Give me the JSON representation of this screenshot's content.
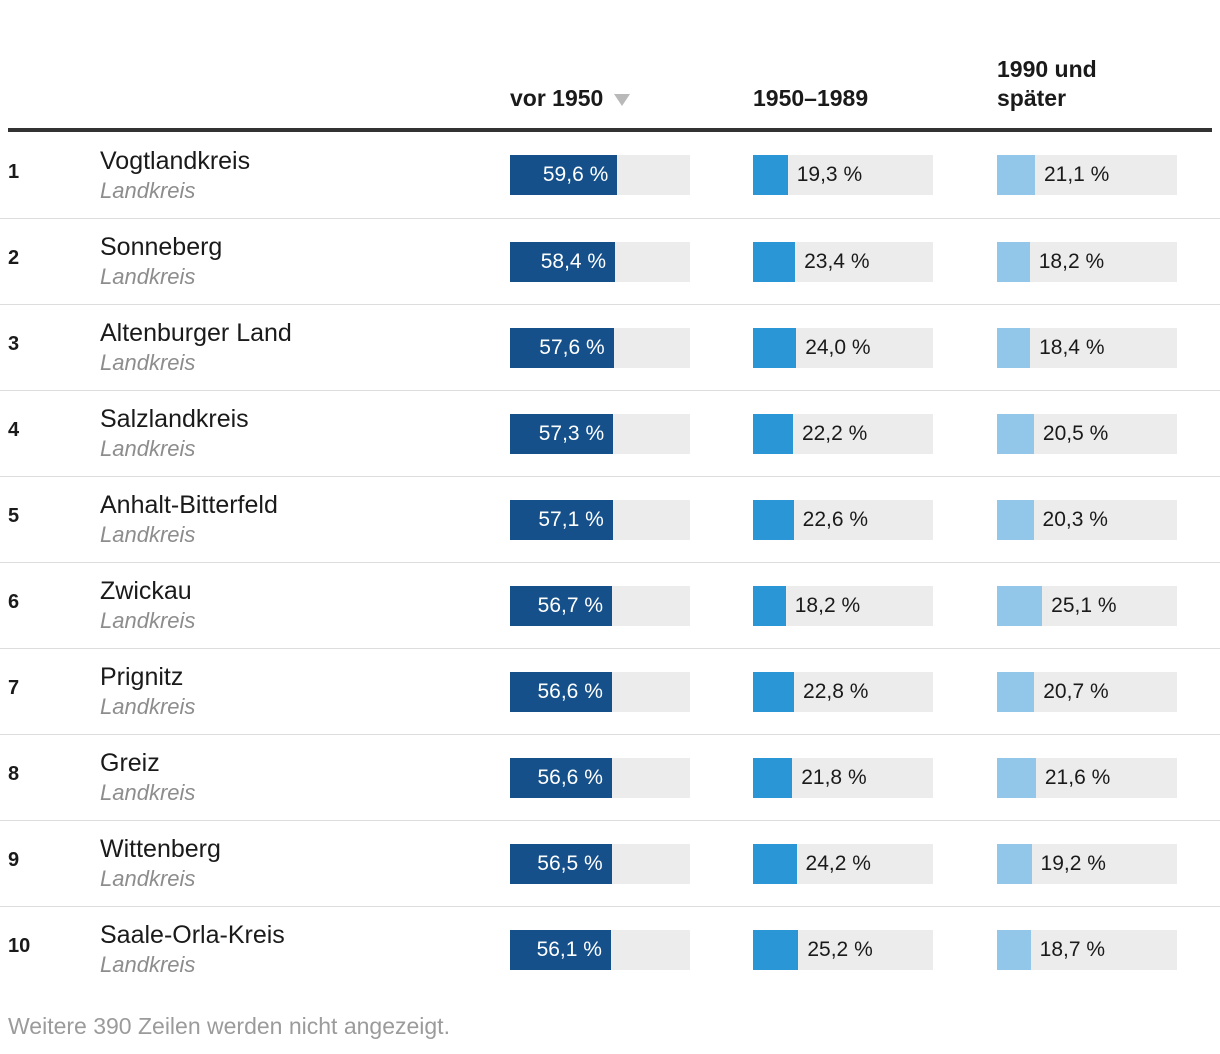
{
  "table": {
    "columns": [
      {
        "id": "vor1950",
        "label": "vor 1950",
        "sorted": true,
        "sort_direction": "desc"
      },
      {
        "id": "b1950_1989",
        "label": "1950–1989",
        "sorted": false
      },
      {
        "id": "ab1990",
        "label": "1990 und später",
        "sorted": false
      }
    ],
    "rows": [
      {
        "rank": "1",
        "name": "Vogtlandkreis",
        "type": "Landkreis",
        "values": [
          {
            "num": 59.6,
            "label": "59,6 %"
          },
          {
            "num": 19.3,
            "label": "19,3 %"
          },
          {
            "num": 21.1,
            "label": "21,1 %"
          }
        ]
      },
      {
        "rank": "2",
        "name": "Sonneberg",
        "type": "Landkreis",
        "values": [
          {
            "num": 58.4,
            "label": "58,4 %"
          },
          {
            "num": 23.4,
            "label": "23,4 %"
          },
          {
            "num": 18.2,
            "label": "18,2 %"
          }
        ]
      },
      {
        "rank": "3",
        "name": "Altenburger Land",
        "type": "Landkreis",
        "values": [
          {
            "num": 57.6,
            "label": "57,6 %"
          },
          {
            "num": 24.0,
            "label": "24,0 %"
          },
          {
            "num": 18.4,
            "label": "18,4 %"
          }
        ]
      },
      {
        "rank": "4",
        "name": "Salzlandkreis",
        "type": "Landkreis",
        "values": [
          {
            "num": 57.3,
            "label": "57,3 %"
          },
          {
            "num": 22.2,
            "label": "22,2 %"
          },
          {
            "num": 20.5,
            "label": "20,5 %"
          }
        ]
      },
      {
        "rank": "5",
        "name": "Anhalt-Bitterfeld",
        "type": "Landkreis",
        "values": [
          {
            "num": 57.1,
            "label": "57,1 %"
          },
          {
            "num": 22.6,
            "label": "22,6 %"
          },
          {
            "num": 20.3,
            "label": "20,3 %"
          }
        ]
      },
      {
        "rank": "6",
        "name": "Zwickau",
        "type": "Landkreis",
        "values": [
          {
            "num": 56.7,
            "label": "56,7 %"
          },
          {
            "num": 18.2,
            "label": "18,2 %"
          },
          {
            "num": 25.1,
            "label": "25,1 %"
          }
        ]
      },
      {
        "rank": "7",
        "name": "Prignitz",
        "type": "Landkreis",
        "values": [
          {
            "num": 56.6,
            "label": "56,6 %"
          },
          {
            "num": 22.8,
            "label": "22,8 %"
          },
          {
            "num": 20.7,
            "label": "20,7 %"
          }
        ]
      },
      {
        "rank": "8",
        "name": "Greiz",
        "type": "Landkreis",
        "values": [
          {
            "num": 56.6,
            "label": "56,6 %"
          },
          {
            "num": 21.8,
            "label": "21,8 %"
          },
          {
            "num": 21.6,
            "label": "21,6 %"
          }
        ]
      },
      {
        "rank": "9",
        "name": "Wittenberg",
        "type": "Landkreis",
        "values": [
          {
            "num": 56.5,
            "label": "56,5 %"
          },
          {
            "num": 24.2,
            "label": "24,2 %"
          },
          {
            "num": 19.2,
            "label": "19,2 %"
          }
        ]
      },
      {
        "rank": "10",
        "name": "Saale-Orla-Kreis",
        "type": "Landkreis",
        "values": [
          {
            "num": 56.1,
            "label": "56,1 %"
          },
          {
            "num": 25.2,
            "label": "25,2 %"
          },
          {
            "num": 18.7,
            "label": "18,7 %"
          }
        ]
      }
    ],
    "footer": "Weitere 390 Zeilen werden nicht angezeigt."
  },
  "colors": {
    "bar_dark_blue": "#15508a",
    "bar_medium_blue": "#2a96d5",
    "bar_light_blue": "#93c7ea",
    "bar_track": "#ececec",
    "header_rule": "#333333",
    "row_separator": "#dddddd",
    "text_primary": "#1a1a1a",
    "text_muted": "#8d8d8d",
    "footer_text": "#9b9b9b",
    "sort_triangle": "#b9b9b9"
  },
  "chart_data": {
    "type": "table",
    "title": "",
    "categories": [
      "Vogtlandkreis",
      "Sonneberg",
      "Altenburger Land",
      "Salzlandkreis",
      "Anhalt-Bitterfeld",
      "Zwickau",
      "Prignitz",
      "Greiz",
      "Wittenberg",
      "Saale-Orla-Kreis"
    ],
    "category_subtitle": "Landkreis",
    "series": [
      {
        "name": "vor 1950",
        "values": [
          59.6,
          58.4,
          57.6,
          57.3,
          57.1,
          56.7,
          56.6,
          56.6,
          56.5,
          56.1
        ]
      },
      {
        "name": "1950–1989",
        "values": [
          19.3,
          23.4,
          24.0,
          22.2,
          22.6,
          18.2,
          22.8,
          21.8,
          24.2,
          25.2
        ]
      },
      {
        "name": "1990 und später",
        "values": [
          21.1,
          18.2,
          18.4,
          20.5,
          20.3,
          25.1,
          20.7,
          21.6,
          19.2,
          18.7
        ]
      }
    ],
    "unit": "%",
    "bar_scale": [
      0,
      100
    ],
    "sorted_by": "vor 1950 descending",
    "rows_hidden_note": "Weitere 390 Zeilen werden nicht angezeigt."
  }
}
